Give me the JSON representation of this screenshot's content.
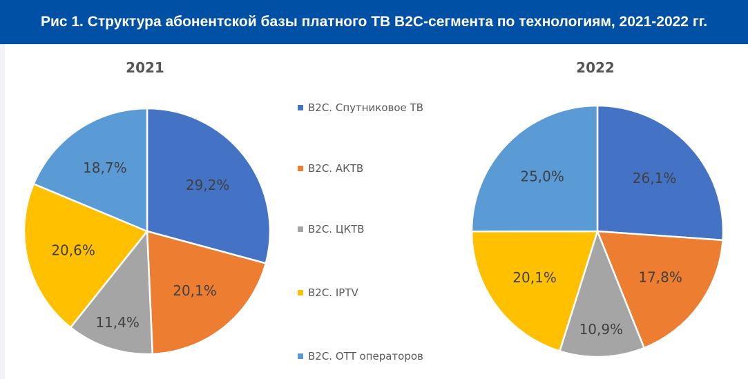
{
  "header": {
    "title": "Рис 1. Структура абонентской базы платного ТВ B2C-сегмента по технологиям, 2021-2022 гг."
  },
  "chart_data": [
    {
      "type": "pie",
      "title": "2021",
      "categories": [
        "B2C. Спутниковое ТВ",
        "B2C. АКТВ",
        "B2C. ЦКТВ",
        "B2C. IPTV",
        "B2C. OTT операторов"
      ],
      "values": [
        29.2,
        20.1,
        11.4,
        20.6,
        18.7
      ],
      "labels": [
        "29,2%",
        "20,1%",
        "11,4%",
        "20,6%",
        "18,7%"
      ],
      "colors": [
        "#4472c4",
        "#ed7d31",
        "#a5a5a5",
        "#ffc000",
        "#5b9bd5"
      ],
      "legend_position": "between charts"
    },
    {
      "type": "pie",
      "title": "2022",
      "categories": [
        "B2C. Спутниковое ТВ",
        "B2C. АКТВ",
        "B2C. ЦКТВ",
        "B2C. IPTV",
        "B2C. OTT операторов"
      ],
      "values": [
        26.1,
        17.8,
        10.9,
        20.1,
        25.0
      ],
      "labels": [
        "26,1%",
        "17,8%",
        "10,9%",
        "20,1%",
        "25,0%"
      ],
      "colors": [
        "#4472c4",
        "#ed7d31",
        "#a5a5a5",
        "#ffc000",
        "#5b9bd5"
      ]
    }
  ],
  "legend": [
    "B2C. Спутниковое ТВ",
    "B2C. АКТВ",
    "B2C. ЦКТВ",
    "B2C. IPTV",
    "B2C. OTT операторов"
  ]
}
